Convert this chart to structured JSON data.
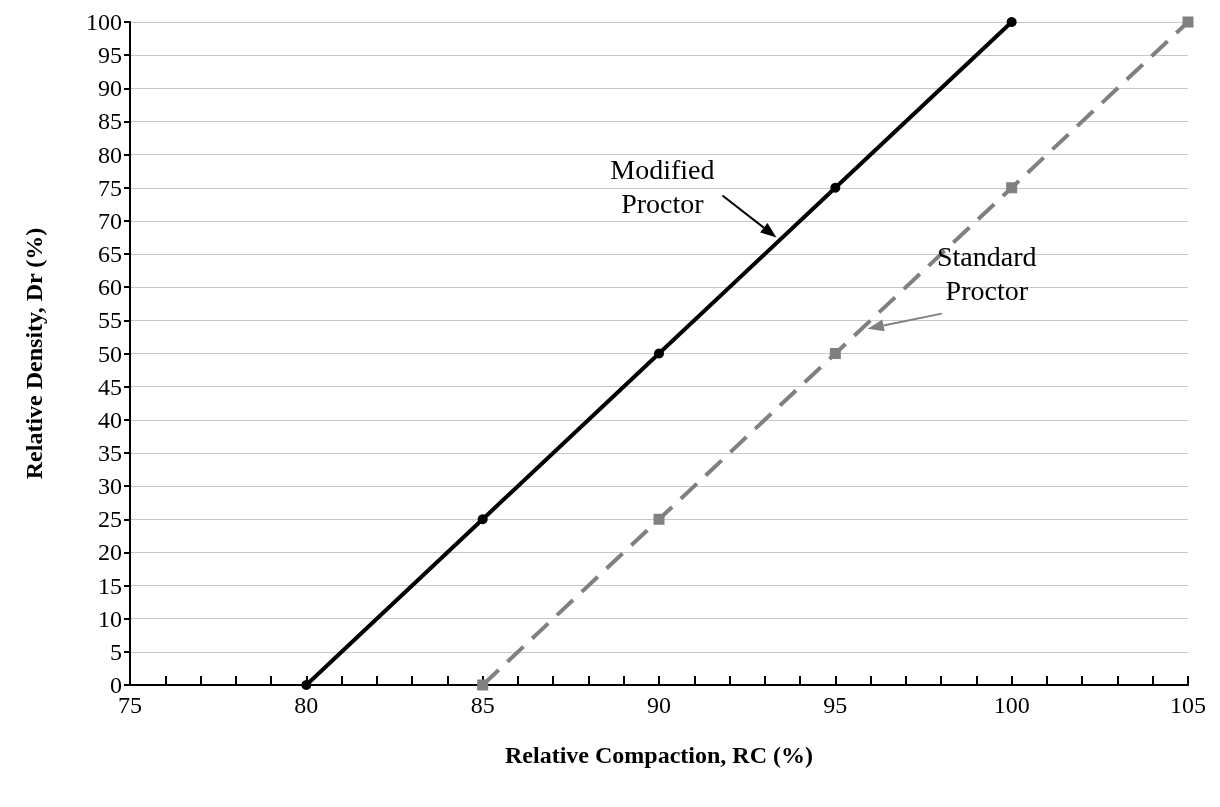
{
  "chart_data": {
    "type": "line",
    "xlabel": "Relative Compaction, RC (%)",
    "ylabel": "Relative Density, Dr (%)",
    "xlim": [
      75,
      105
    ],
    "xticks": [
      75,
      80,
      85,
      90,
      95,
      100,
      105
    ],
    "ylim": [
      0,
      100
    ],
    "yticks": [
      0,
      5,
      10,
      15,
      20,
      25,
      30,
      35,
      40,
      45,
      50,
      55,
      60,
      65,
      70,
      75,
      80,
      85,
      90,
      95,
      100
    ],
    "grid": "y",
    "legend": false,
    "series": [
      {
        "name": "Modified Proctor",
        "color": "#000000",
        "x": [
          80,
          85,
          90,
          95,
          100
        ],
        "values": [
          0,
          25,
          50,
          75,
          100
        ],
        "marker": "circle",
        "line_style": "solid"
      },
      {
        "name": "Standard Proctor",
        "color": "#808080",
        "x": [
          85,
          90,
          95,
          100,
          105
        ],
        "values": [
          0,
          25,
          50,
          75,
          100
        ],
        "marker": "square",
        "line_style": "dashed"
      }
    ]
  }
}
